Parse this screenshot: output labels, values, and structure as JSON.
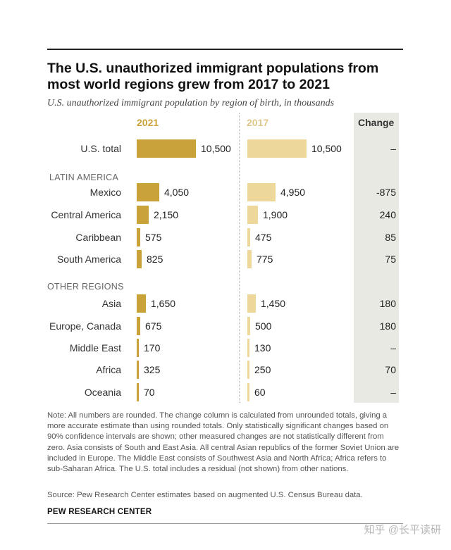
{
  "title": "The U.S. unauthorized immigrant populations from most world regions grew from 2017 to 2021",
  "subtitle": "U.S. unauthorized immigrant population by region of birth, in thousands",
  "columns": {
    "y2021": "2021",
    "y2017": "2017",
    "change": "Change"
  },
  "colors": {
    "bar_2021": "#c9a23a",
    "bar_2017": "#eed79a",
    "change_bg": "#e9e9e3"
  },
  "chart_data": {
    "type": "bar",
    "orientation": "horizontal",
    "units": "thousands",
    "series": [
      {
        "name": "2021",
        "values": [
          10500,
          4050,
          2150,
          575,
          825,
          1650,
          675,
          170,
          325,
          70
        ]
      },
      {
        "name": "2017",
        "values": [
          10500,
          4950,
          1900,
          475,
          775,
          1450,
          500,
          130,
          250,
          60
        ]
      }
    ],
    "groups": [
      {
        "section": "",
        "rows": [
          {
            "label": "U.S. total",
            "v2021": 10500,
            "v2017": 10500,
            "t2021": "10,500",
            "t2017": "10,500",
            "change": "–"
          }
        ]
      },
      {
        "section": "LATIN AMERICA",
        "rows": [
          {
            "label": "Mexico",
            "v2021": 4050,
            "v2017": 4950,
            "t2021": "4,050",
            "t2017": "4,950",
            "change": "-875"
          },
          {
            "label": "Central America",
            "v2021": 2150,
            "v2017": 1900,
            "t2021": "2,150",
            "t2017": "1,900",
            "change": "240"
          },
          {
            "label": "Caribbean",
            "v2021": 575,
            "v2017": 475,
            "t2021": "575",
            "t2017": "475",
            "change": "85"
          },
          {
            "label": "South America",
            "v2021": 825,
            "v2017": 775,
            "t2021": "825",
            "t2017": "775",
            "change": "75"
          }
        ]
      },
      {
        "section": "OTHER REGIONS",
        "rows": [
          {
            "label": "Asia",
            "v2021": 1650,
            "v2017": 1450,
            "t2021": "1,650",
            "t2017": "1,450",
            "change": "180"
          },
          {
            "label": "Europe, Canada",
            "v2021": 675,
            "v2017": 500,
            "t2021": "675",
            "t2017": "500",
            "change": "180"
          },
          {
            "label": "Middle East",
            "v2021": 170,
            "v2017": 130,
            "t2021": "170",
            "t2017": "130",
            "change": "–"
          },
          {
            "label": "Africa",
            "v2021": 325,
            "v2017": 250,
            "t2021": "325",
            "t2017": "250",
            "change": "70"
          },
          {
            "label": "Oceania",
            "v2021": 70,
            "v2017": 60,
            "t2021": "70",
            "t2017": "60",
            "change": "–"
          }
        ]
      }
    ]
  },
  "note": "Note: All numbers are rounded. The change column is calculated from unrounded totals, giving a more accurate estimate than using rounded totals. Only statistically significant changes based on 90% confidence intervals are shown; other measured changes are not statistically different from zero. Asia consists of South and East Asia. All central Asian republics of the former Soviet Union are included in Europe. The Middle East consists of Southwest Asia and North Africa; Africa refers to sub-Saharan Africa. The U.S. total includes a residual (not shown) from other nations.",
  "source": "Source: Pew Research Center estimates based on augmented U.S. Census Bureau data.",
  "brand": "PEW RESEARCH CENTER",
  "watermark": "知乎 @长平读研"
}
